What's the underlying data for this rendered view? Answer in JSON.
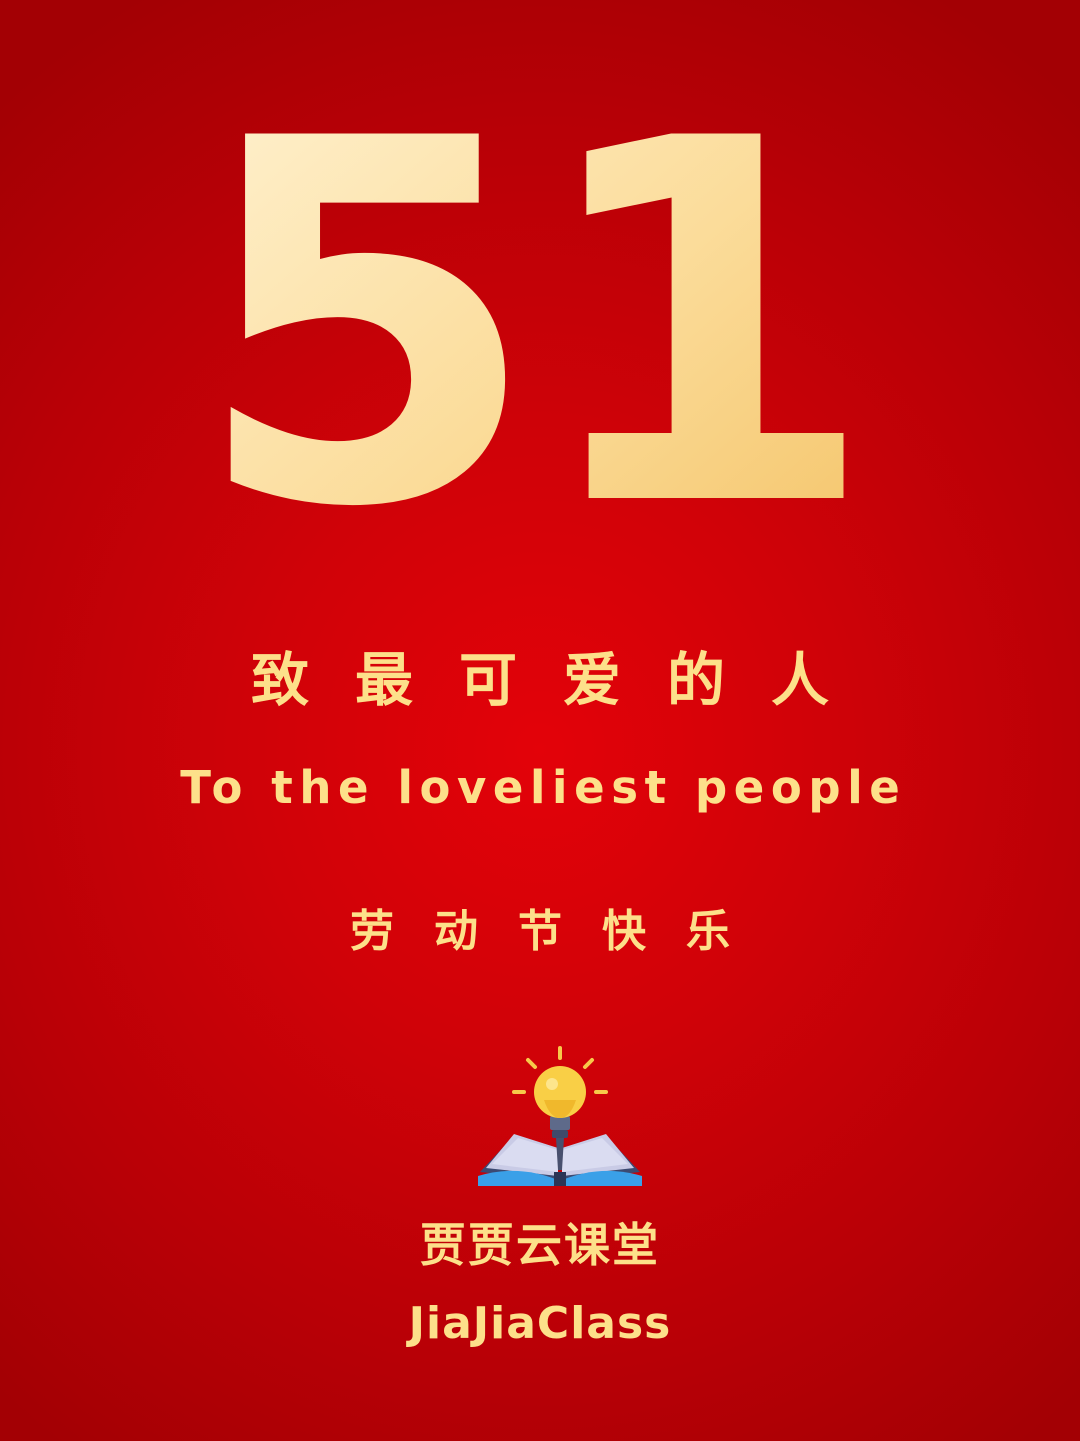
{
  "poster": {
    "number": "51",
    "tagline_cn": "致最可爱的人",
    "tagline_en": "To the loveliest people",
    "holiday": "劳动节快乐",
    "icon": "lightbulb-book-icon",
    "brand_cn": "贾贾云课堂",
    "brand_en": "JiaJiaClass"
  },
  "colors": {
    "background": "#d00208",
    "text": "#fde08a",
    "number_gradient_start": "#fff1cf",
    "number_gradient_end": "#f5c46a"
  }
}
